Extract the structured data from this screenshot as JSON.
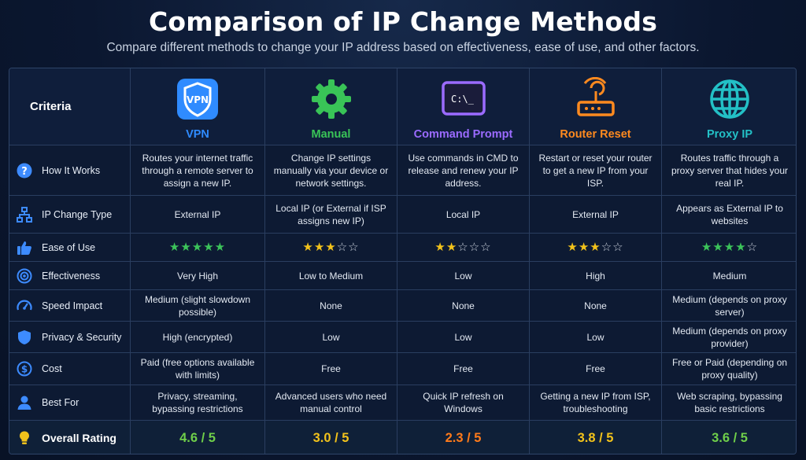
{
  "header": {
    "title": "Comparison of IP Change Methods",
    "subtitle": "Compare different methods to change your IP address based on effectiveness, ease of use, and other factors."
  },
  "table": {
    "criteria_header": "Criteria",
    "methods": [
      {
        "label": "VPN",
        "color": "#2f8bff",
        "icon": "vpn-shield-icon"
      },
      {
        "label": "Manual",
        "color": "#39c457",
        "icon": "gear-icon"
      },
      {
        "label": "Command Prompt",
        "color": "#9b6bff",
        "icon": "terminal-icon"
      },
      {
        "label": "Router Reset",
        "color": "#ff8a1f",
        "icon": "router-icon"
      },
      {
        "label": "Proxy IP",
        "color": "#23c0c6",
        "icon": "globe-icon"
      }
    ],
    "rows": [
      {
        "criterion": "How It Works",
        "icon": "question-icon",
        "values": [
          "Routes your internet traffic through a remote server to assign a new IP.",
          "Change IP settings manually via your device or network settings.",
          "Use commands in CMD to release and renew your IP address.",
          "Restart or reset your router to get a new IP from your ISP.",
          "Routes traffic through a proxy server that hides your real IP."
        ]
      },
      {
        "criterion": "IP Change Type",
        "icon": "network-icon",
        "values": [
          "External IP",
          "Local IP (or External if ISP assigns new IP)",
          "Local IP",
          "External IP",
          "Appears as External IP to websites"
        ]
      },
      {
        "criterion": "Ease of Use",
        "icon": "thumbs-up-icon",
        "stars": [
          5,
          3,
          2,
          3,
          4
        ]
      },
      {
        "criterion": "Effectiveness",
        "icon": "target-icon",
        "values": [
          "Very High",
          "Low to Medium",
          "Low",
          "High",
          "Medium"
        ]
      },
      {
        "criterion": "Speed Impact",
        "icon": "speedometer-icon",
        "values": [
          "Medium (slight slowdown possible)",
          "None",
          "None",
          "None",
          "Medium (depends on proxy server)"
        ]
      },
      {
        "criterion": "Privacy & Security",
        "icon": "shield-icon",
        "values": [
          "High (encrypted)",
          "Low",
          "Low",
          "Low",
          "Medium (depends on proxy provider)"
        ]
      },
      {
        "criterion": "Cost",
        "icon": "dollar-icon",
        "values": [
          "Paid (free options available with limits)",
          "Free",
          "Free",
          "Free",
          "Free or Paid (depending on proxy quality)"
        ]
      },
      {
        "criterion": "Best For",
        "icon": "person-icon",
        "values": [
          "Privacy, streaming, bypassing restrictions",
          "Advanced users who need manual control",
          "Quick IP refresh on Windows",
          "Getting a new IP from ISP, troubleshooting",
          "Web scraping, bypassing basic restrictions"
        ]
      }
    ],
    "overall": {
      "label": "Overall Rating",
      "icon": "lightbulb-icon",
      "values": [
        "4.6 / 5",
        "3.0 / 5",
        "2.3 / 5",
        "3.8 / 5",
        "3.6 / 5"
      ],
      "colors": [
        "#6fcf4a",
        "#f2c21b",
        "#ff7a1a",
        "#f2c21b",
        "#6fcf4a"
      ]
    }
  }
}
